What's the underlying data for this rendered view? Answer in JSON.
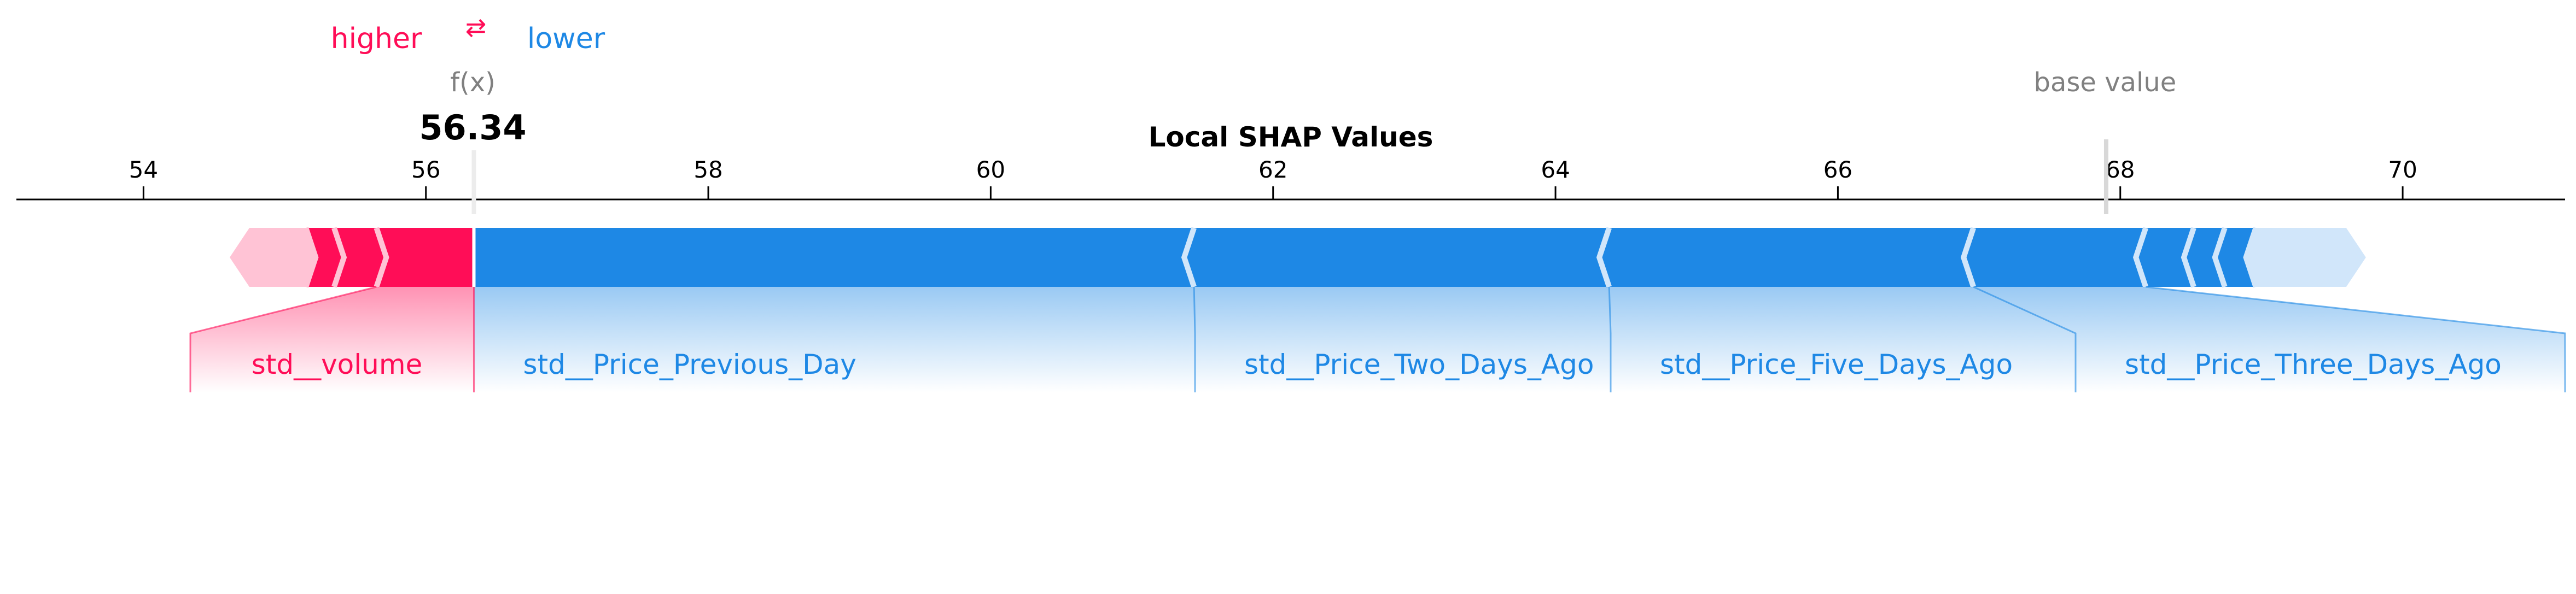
{
  "legend": {
    "higher_label": "higher",
    "arrows": "⇄",
    "lower_label": "lower"
  },
  "colors": {
    "higher": "#ff0d57",
    "lower": "#1e88e5",
    "higher_light": "#ffc3d5",
    "lower_light": "#d1e6fa",
    "muted": "#808080",
    "axis": "#000000"
  },
  "chart_data": {
    "type": "force",
    "title": "Local SHAP Values",
    "fx_label": "f(x)",
    "fx_value": 56.34,
    "fx_value_text": "56.34",
    "base_value_label": "base value",
    "base_value": 67.9,
    "xlim": [
      53.1,
      71.15
    ],
    "ticks": [
      54,
      56,
      58,
      60,
      62,
      64,
      66,
      68,
      70
    ],
    "tick_labels": [
      "54",
      "56",
      "58",
      "60",
      "62",
      "64",
      "66",
      "68",
      "70"
    ],
    "positive_features": [
      {
        "name": "std__volume",
        "from": 56.34,
        "to": 55.65,
        "labeled": true
      },
      {
        "name": "",
        "from": 55.65,
        "to": 55.35,
        "labeled": false
      },
      {
        "name": "",
        "from": 55.35,
        "to": 55.15,
        "labeled": false
      },
      {
        "name": "",
        "from": 55.15,
        "to": 54.75,
        "labeled": false
      }
    ],
    "negative_features": [
      {
        "name": "std__Price_Previous_Day",
        "from": 56.34,
        "to": 61.44,
        "labeled": true
      },
      {
        "name": "std__Price_Two_Days_Ago",
        "from": 61.44,
        "to": 64.38,
        "labeled": true
      },
      {
        "name": "std__Price_Five_Days_Ago",
        "from": 64.38,
        "to": 66.96,
        "labeled": true
      },
      {
        "name": "std__Price_Three_Days_Ago",
        "from": 66.96,
        "to": 68.18,
        "labeled": true
      },
      {
        "name": "",
        "from": 68.18,
        "to": 68.52,
        "labeled": false
      },
      {
        "name": "",
        "from": 68.52,
        "to": 68.74,
        "labeled": false
      },
      {
        "name": "",
        "from": 68.74,
        "to": 68.96,
        "labeled": false
      },
      {
        "name": "",
        "from": 68.96,
        "to": 69.6,
        "labeled": false
      }
    ]
  }
}
